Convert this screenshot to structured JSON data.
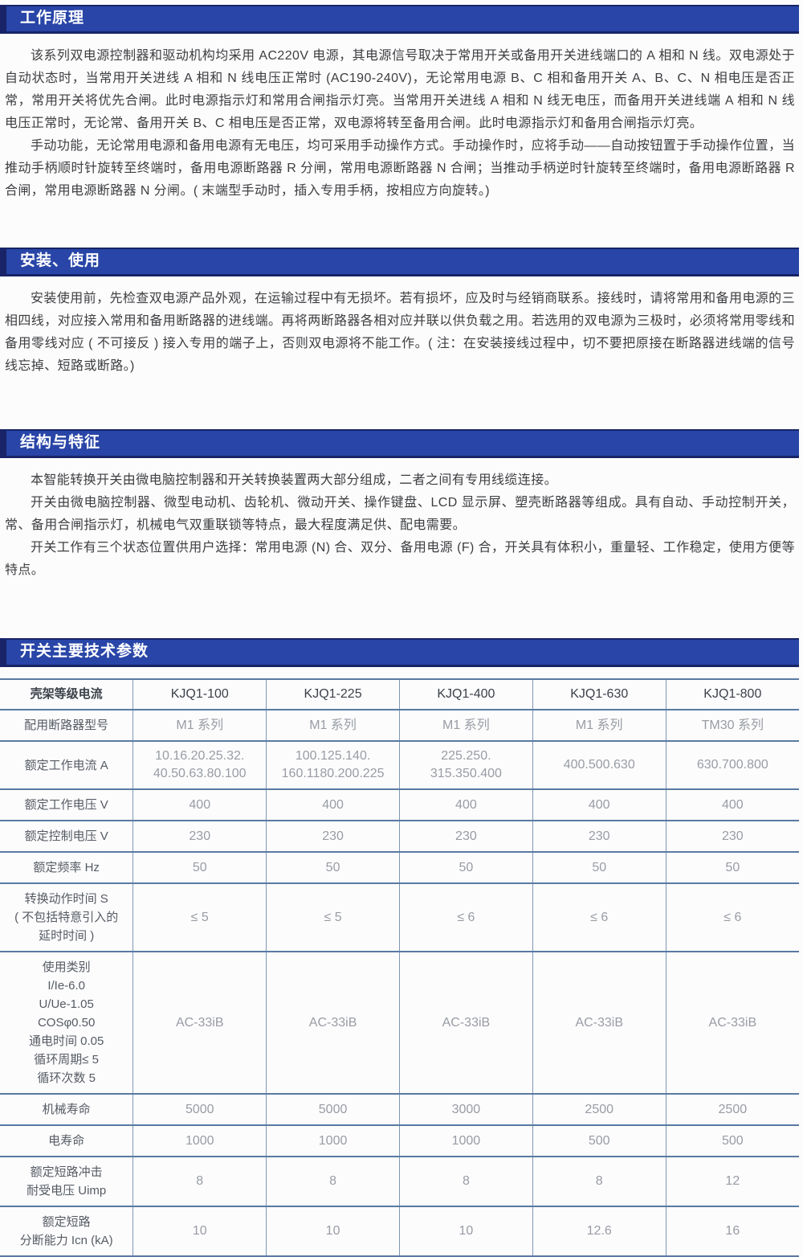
{
  "colors": {
    "bar_blue": "#2845a7",
    "bar_dark_edge": "#182467",
    "table_rule": "#597aa2",
    "table_divider": "#7f97b5",
    "body_text": "#3d3e40",
    "label_text": "#565b63",
    "value_text": "#989ca3"
  },
  "sections": [
    {
      "title": "工作原理",
      "paragraphs": [
        "该系列双电源控制器和驱动机构均采用 AC220V 电源，其电源信号取决于常用开关或备用开关进线端口的 A 相和 N 线。双电源处于自动状态时，当常用开关进线 A 相和 N 线电压正常时 (AC190-240V)，无论常用电源 B、C 相和备用开关 A、B、C、N 相电压是否正常，常用开关将优先合闸。此时电源指示灯和常用合闸指示灯亮。当常用开关进线 A 相和 N 线无电压，而备用开关进线端 A 相和 N 线电压正常时，无论常、备用开关 B、C 相电压是否正常，双电源将转至备用合闸。此时电源指示灯和备用合闸指示灯亮。",
        "手动功能，无论常用电源和备用电源有无电压，均可采用手动操作方式。手动操作时，应将手动——自动按钮置于手动操作位置，当推动手柄顺时针旋转至终端时，备用电源断路器 R 分闸，常用电源断路器 N 合闸；当推动手柄逆时针旋转至终端时，备用电源断路器 R 合闸，常用电源断路器 N 分闸。( 末端型手动时，插入专用手柄，按相应方向旋转。)"
      ]
    },
    {
      "title": "安装、使用",
      "paragraphs": [
        "安装使用前，先检查双电源产品外观，在运输过程中有无损坏。若有损坏，应及时与经销商联系。接线时，请将常用和备用电源的三相四线，对应接入常用和备用断路器的进线端。再将两断路器各相对应并联以供负载之用。若选用的双电源为三极时，必须将常用零线和备用零线对应 ( 不可接反 ) 接入专用的端子上，否则双电源将不能工作。( 注：在安装接线过程中，切不要把原接在断路器进线端的信号线忘掉、短路或断路。)"
      ]
    },
    {
      "title": "结构与特征",
      "paragraphs": [
        "本智能转换开关由微电脑控制器和开关转换装置两大部分组成，二者之间有专用线缆连接。",
        "开关由微电脑控制器、微型电动机、齿轮机、微动开关、操作键盘、LCD 显示屏、塑壳断路器等组成。具有自动、手动控制开关，常、备用合闸指示灯，机械电气双重联锁等特点，最大程度满足供、配电需要。",
        "开关工作有三个状态位置供用户选择：常用电源 (N) 合、双分、备用电源 (F) 合，开关具有体积小，重量轻、工作稳定，使用方便等特点。"
      ]
    },
    {
      "title": "开关主要技术参数",
      "paragraphs": []
    }
  ],
  "parameters_table": {
    "columns": [
      "壳架等级电流",
      "KJQ1-100",
      "KJQ1-225",
      "KJQ1-400",
      "KJQ1-630",
      "KJQ1-800"
    ],
    "rows": [
      {
        "label": "配用断路器型号",
        "values": [
          "M1 系列",
          "M1 系列",
          "M1 系列",
          "M1 系列",
          "TM30 系列"
        ]
      },
      {
        "label": "额定工作电流 A",
        "values": [
          "10.16.20.25.32.\n40.50.63.80.100",
          "100.125.140.\n160.1180.200.225",
          "225.250.\n315.350.400",
          "400.500.630",
          "630.700.800"
        ]
      },
      {
        "label": "额定工作电压 V",
        "values": [
          "400",
          "400",
          "400",
          "400",
          "400"
        ]
      },
      {
        "label": "额定控制电压 V",
        "values": [
          "230",
          "230",
          "230",
          "230",
          "230"
        ]
      },
      {
        "label": "额定频率 Hz",
        "values": [
          "50",
          "50",
          "50",
          "50",
          "50"
        ]
      },
      {
        "label": "转换动作时间 S\n( 不包括特意引入的\n延时时间 )",
        "values": [
          "≤ 5",
          "≤ 5",
          "≤ 6",
          "≤ 6",
          "≤ 6"
        ]
      },
      {
        "label": "使用类别\nI/Ie-6.0\nU/Ue-1.05\nCOSφ0.50\n通电时间 0.05\n循环周期≤ 5\n循环次数 5",
        "values": [
          "AC-33iB",
          "AC-33iB",
          "AC-33iB",
          "AC-33iB",
          "AC-33iB"
        ]
      },
      {
        "label": "机械寿命",
        "values": [
          "5000",
          "5000",
          "3000",
          "2500",
          "2500"
        ]
      },
      {
        "label": "电寿命",
        "values": [
          "1000",
          "1000",
          "1000",
          "500",
          "500"
        ]
      },
      {
        "label": "额定短路冲击\n耐受电压 Uimp",
        "values": [
          "8",
          "8",
          "8",
          "8",
          "12"
        ]
      },
      {
        "label": "额定短路\n分断能力 Icn (kA)",
        "values": [
          "10",
          "10",
          "10",
          "12.6",
          "16"
        ]
      }
    ]
  }
}
